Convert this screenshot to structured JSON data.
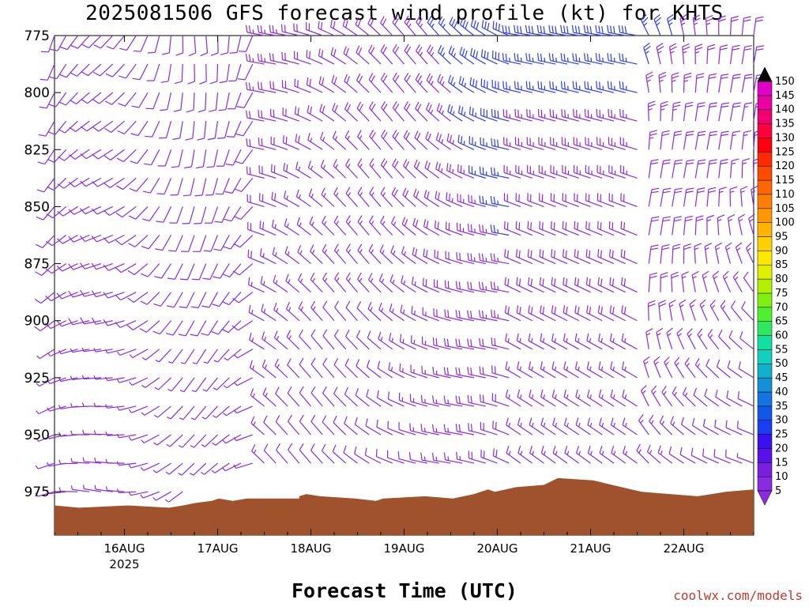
{
  "title": "2025081506 GFS forecast wind profile (kt) for KHTS",
  "xtitle": "Forecast Time (UTC)",
  "credit": "coolwx.com/models",
  "chart_data": {
    "type": "wind_barb_profile",
    "units": "kt",
    "y_axis": {
      "label": "",
      "pressure_levels": [
        775,
        800,
        825,
        850,
        875,
        900,
        925,
        950,
        975
      ],
      "range": [
        775,
        994
      ],
      "inverted": true
    },
    "x_axis": {
      "label": "Forecast Time (UTC)",
      "tick_labels": [
        "16AUG",
        "17AUG",
        "18AUG",
        "19AUG",
        "20AUG",
        "21AUG",
        "22AUG"
      ],
      "year_label": "2025",
      "start": "2025-08-15T06:00Z",
      "end": "2025-08-22T18:00Z",
      "step_hours": 3
    },
    "colorbar": {
      "levels": [
        5,
        10,
        15,
        20,
        25,
        30,
        35,
        40,
        45,
        50,
        55,
        60,
        65,
        70,
        75,
        80,
        85,
        90,
        95,
        100,
        105,
        110,
        115,
        120,
        125,
        130,
        135,
        140,
        145,
        150
      ],
      "colors": [
        "#8a2be2",
        "#7a1fe0",
        "#5a10e8",
        "#3a10f0",
        "#1a3ef5",
        "#1058e8",
        "#1475e0",
        "#1590d8",
        "#10b0d0",
        "#10d0c0",
        "#10e0a0",
        "#30e860",
        "#50f030",
        "#80f010",
        "#b0f000",
        "#e0f000",
        "#ffe800",
        "#ffd000",
        "#ffb400",
        "#ff9800",
        "#ff8000",
        "#ff6600",
        "#ff4a00",
        "#ff2a00",
        "#ff0010",
        "#ff0040",
        "#f00070",
        "#e800a0",
        "#e000c8",
        "#d800e8"
      ]
    },
    "terrain_color": "#a0522d",
    "barb_colors": {
      "light": "#8a2be2",
      "moderate": "#2a3ff5"
    },
    "grid": false,
    "legend": "right"
  }
}
